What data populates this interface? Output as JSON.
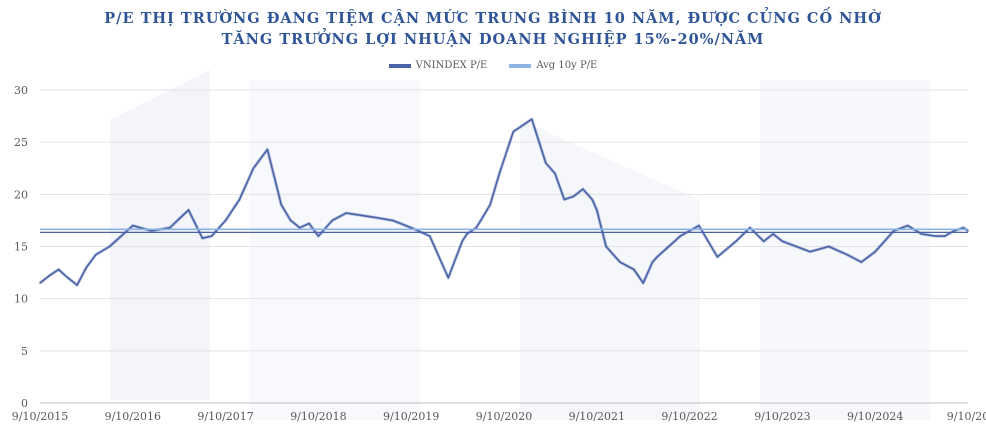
{
  "title_line1": "P/E THỊ TRƯỜNG ĐANG TIỆM CẬN MỨC TRUNG BÌNH 10 NĂM, ĐƯỢC CỦNG CỐ NHỜ",
  "title_line2": "TĂNG TRƯỞNG LỢI NHUẬN DOANH NGHIỆP 15%-20%/NĂM",
  "legend": [
    {
      "label": "VNINDEX P/E",
      "color": "#4a64a8"
    },
    {
      "label": "Avg 10y P/E",
      "color": "#8db3e2"
    }
  ],
  "chart_data": {
    "type": "line",
    "title": "P/E THỊ TRƯỜNG ĐANG TIỆM CẬN MỨC TRUNG BÌNH 10 NĂM, ĐƯỢC CỦNG CỐ NHỜ TĂNG TRƯỞNG LỢI NHUẬN DOANH NGHIỆP 15%-20%/NĂM",
    "xlabel": "",
    "ylabel": "",
    "ylim": [
      0,
      30
    ],
    "yticks": [
      "0",
      "5",
      "10",
      "15",
      "20",
      "25",
      "30"
    ],
    "xticks": [
      "9/10/2015",
      "9/10/2016",
      "9/10/2017",
      "9/10/2018",
      "9/10/2019",
      "9/10/2020",
      "9/10/2021",
      "9/10/2022",
      "9/10/2023",
      "9/10/2024",
      "9/10/20"
    ],
    "xlim": [
      2015.0,
      2025.0
    ],
    "grid": "horizontal",
    "legend_position": "top",
    "series": [
      {
        "name": "VNINDEX P/E",
        "x": [
          2015.0,
          2015.1,
          2015.2,
          2015.3,
          2015.4,
          2015.5,
          2015.6,
          2015.75,
          2015.9,
          2016.0,
          2016.2,
          2016.4,
          2016.6,
          2016.75,
          2016.85,
          2016.9,
          2017.0,
          2017.15,
          2017.3,
          2017.45,
          2017.6,
          2017.7,
          2017.8,
          2017.9,
          2018.0,
          2018.15,
          2018.3,
          2018.45,
          2018.6,
          2018.8,
          2019.0,
          2019.2,
          2019.4,
          2019.55,
          2019.6,
          2019.7,
          2019.75,
          2019.85,
          2019.95,
          2020.1,
          2020.3,
          2020.45,
          2020.55,
          2020.65,
          2020.75,
          2020.85,
          2020.95,
          2021.0,
          2021.1,
          2021.25,
          2021.4,
          2021.5,
          2021.6,
          2021.65,
          2021.75,
          2021.9,
          2022.1,
          2022.3,
          2022.5,
          2022.65,
          2022.8,
          2022.9,
          2023.0,
          2023.15,
          2023.3,
          2023.5,
          2023.7,
          2023.85,
          2024.0,
          2024.2,
          2024.35,
          2024.5,
          2024.65,
          2024.75,
          2024.85,
          2024.95,
          2025.0
        ],
        "values": [
          11.5,
          12.2,
          12.8,
          12.0,
          11.3,
          13.0,
          14.2,
          15.0,
          16.2,
          17.0,
          16.5,
          16.8,
          18.5,
          15.8,
          16.0,
          16.5,
          17.5,
          19.5,
          22.5,
          24.3,
          19.0,
          17.5,
          16.8,
          17.2,
          16.0,
          17.5,
          18.2,
          18.0,
          17.8,
          17.5,
          16.8,
          16.0,
          12.0,
          15.5,
          16.2,
          16.8,
          17.5,
          19.0,
          22.0,
          26.0,
          27.2,
          23.0,
          22.0,
          19.5,
          19.8,
          20.5,
          19.5,
          18.5,
          15.0,
          13.5,
          12.8,
          11.5,
          13.5,
          14.0,
          14.8,
          16.0,
          17.0,
          14.0,
          15.5,
          16.8,
          15.5,
          16.2,
          15.5,
          15.0,
          14.5,
          15.0,
          14.2,
          13.5,
          14.5,
          16.5,
          17.0,
          16.2,
          16.0,
          16.0,
          16.5,
          16.8,
          16.5
        ],
        "color": "#4a64a8"
      },
      {
        "name": "Avg 10y P/E",
        "x": [
          2015.0,
          2025.0
        ],
        "values": [
          16.5,
          16.5
        ],
        "color": "#8db3e2"
      }
    ]
  }
}
